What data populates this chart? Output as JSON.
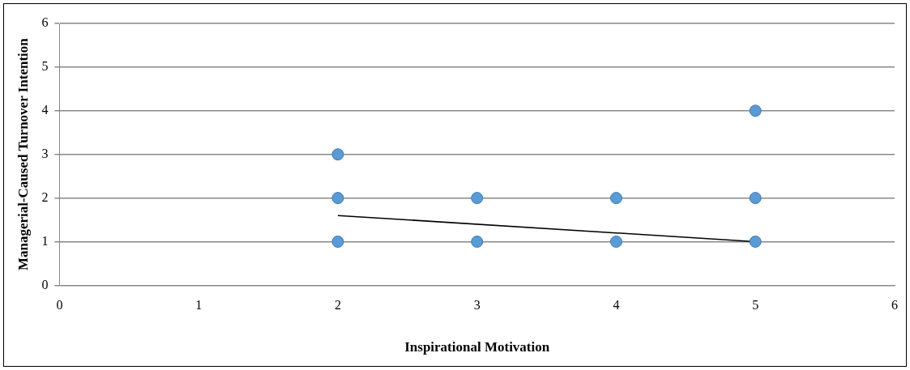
{
  "chart_data": {
    "type": "scatter",
    "xlabel": "Inspirational Motivation",
    "ylabel": "Managerial-Caused Turnover Intention",
    "xlim": [
      0,
      6
    ],
    "xticks": [
      0,
      1,
      2,
      3,
      4,
      5,
      6
    ],
    "ylim": [
      0,
      6
    ],
    "yticks": [
      0,
      1,
      2,
      3,
      4,
      5,
      6
    ],
    "grid": "y",
    "legend": false,
    "series": [
      {
        "marker": "circle",
        "color": "#5b9bd5",
        "x": [
          2,
          2,
          2,
          3,
          3,
          4,
          4,
          5,
          5,
          5
        ],
        "values": [
          3,
          2,
          1,
          2,
          1,
          2,
          1,
          4,
          2,
          1
        ]
      },
      {
        "type": "line",
        "marker": "none",
        "color": "#000000",
        "x": [
          2,
          5
        ],
        "values": [
          1.6,
          1.0
        ]
      }
    ]
  }
}
